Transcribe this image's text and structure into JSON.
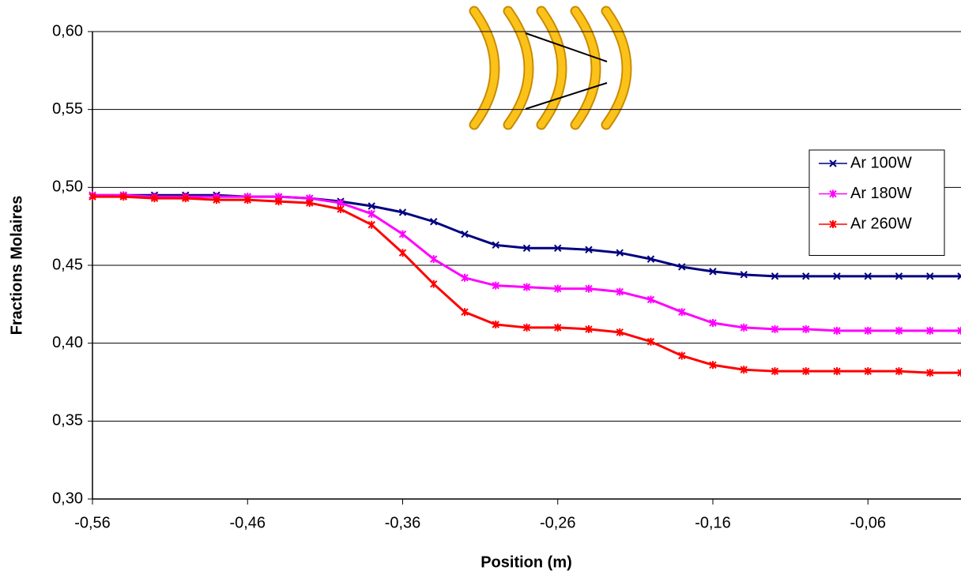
{
  "chart_data": {
    "type": "line",
    "x_label": "Position (m)",
    "y_label": "Fractions Molaires",
    "xlim": [
      -0.56,
      0
    ],
    "ylim": [
      0.3,
      0.6
    ],
    "xticks": [
      {
        "value": -0.56,
        "label": "-0,56"
      },
      {
        "value": -0.46,
        "label": "-0,46"
      },
      {
        "value": -0.36,
        "label": "-0,36"
      },
      {
        "value": -0.26,
        "label": "-0,26"
      },
      {
        "value": -0.16,
        "label": "-0,16"
      },
      {
        "value": -0.06,
        "label": "-0,06"
      }
    ],
    "yticks": [
      {
        "value": 0.3,
        "label": "0,30"
      },
      {
        "value": 0.35,
        "label": "0,35"
      },
      {
        "value": 0.4,
        "label": "0,40"
      },
      {
        "value": 0.45,
        "label": "0,45"
      },
      {
        "value": 0.5,
        "label": "0,50"
      },
      {
        "value": 0.55,
        "label": "0,55"
      },
      {
        "value": 0.6,
        "label": "0,60"
      }
    ],
    "grid": true,
    "legend": "right",
    "x": [
      -0.56,
      -0.54,
      -0.52,
      -0.5,
      -0.48,
      -0.46,
      -0.44,
      -0.42,
      -0.4,
      -0.38,
      -0.36,
      -0.34,
      -0.32,
      -0.3,
      -0.28,
      -0.26,
      -0.24,
      -0.22,
      -0.2,
      -0.18,
      -0.16,
      -0.14,
      -0.12,
      -0.1,
      -0.08,
      -0.06,
      -0.04,
      -0.02,
      0
    ],
    "series": [
      {
        "name": "Ar 100W",
        "color": "#000080",
        "marker": "x",
        "values": [
          0.495,
          0.495,
          0.495,
          0.495,
          0.495,
          0.494,
          0.494,
          0.493,
          0.491,
          0.488,
          0.484,
          0.478,
          0.47,
          0.463,
          0.461,
          0.461,
          0.46,
          0.458,
          0.454,
          0.449,
          0.446,
          0.444,
          0.443,
          0.443,
          0.443,
          0.443,
          0.443,
          0.443,
          0.443
        ]
      },
      {
        "name": "Ar 180W",
        "color": "#ff00ff",
        "marker": "star",
        "values": [
          0.495,
          0.495,
          0.494,
          0.494,
          0.494,
          0.494,
          0.494,
          0.493,
          0.49,
          0.483,
          0.47,
          0.454,
          0.442,
          0.437,
          0.436,
          0.435,
          0.435,
          0.433,
          0.428,
          0.42,
          0.413,
          0.41,
          0.409,
          0.409,
          0.408,
          0.408,
          0.408,
          0.408,
          0.408
        ]
      },
      {
        "name": "Ar 260W",
        "color": "#ff0000",
        "marker": "star",
        "values": [
          0.494,
          0.494,
          0.493,
          0.493,
          0.492,
          0.492,
          0.491,
          0.49,
          0.486,
          0.476,
          0.458,
          0.438,
          0.42,
          0.412,
          0.41,
          0.41,
          0.409,
          0.407,
          0.401,
          0.392,
          0.386,
          0.383,
          0.382,
          0.382,
          0.382,
          0.382,
          0.382,
          0.381,
          0.381
        ]
      }
    ]
  }
}
